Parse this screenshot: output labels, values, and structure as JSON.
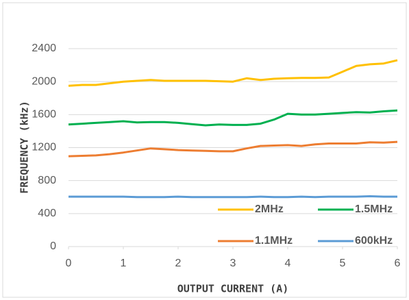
{
  "chart_data": {
    "type": "line",
    "x_label": "OUTPUT CURRENT (A)",
    "y_label": "FREQUENCY (kHz)",
    "x": [
      0,
      0.25,
      0.5,
      0.75,
      1,
      1.25,
      1.5,
      1.75,
      2,
      2.25,
      2.5,
      2.75,
      3,
      3.25,
      3.5,
      3.75,
      4,
      4.25,
      4.5,
      4.75,
      5,
      5.25,
      5.5,
      5.75,
      6
    ],
    "series": [
      {
        "name": "2MHz",
        "color": "#ffc000",
        "values": [
          1950,
          1960,
          1960,
          1980,
          2000,
          2010,
          2020,
          2010,
          2010,
          2010,
          2010,
          2005,
          2000,
          2040,
          2020,
          2035,
          2040,
          2045,
          2045,
          2050,
          2120,
          2190,
          2210,
          2220,
          2260
        ]
      },
      {
        "name": "1.5MHz",
        "color": "#00b050",
        "values": [
          1480,
          1490,
          1500,
          1510,
          1520,
          1505,
          1510,
          1510,
          1500,
          1485,
          1470,
          1480,
          1475,
          1475,
          1490,
          1540,
          1610,
          1600,
          1600,
          1610,
          1620,
          1630,
          1625,
          1640,
          1650
        ]
      },
      {
        "name": "1.1MHz",
        "color": "#ed7d31",
        "values": [
          1095,
          1100,
          1105,
          1120,
          1140,
          1165,
          1190,
          1180,
          1170,
          1165,
          1160,
          1155,
          1155,
          1190,
          1220,
          1225,
          1230,
          1220,
          1240,
          1250,
          1250,
          1250,
          1265,
          1260,
          1270
        ]
      },
      {
        "name": "600kHz",
        "color": "#5b9bd5",
        "values": [
          605,
          605,
          605,
          605,
          605,
          600,
          600,
          600,
          605,
          600,
          600,
          600,
          600,
          600,
          605,
          600,
          600,
          605,
          600,
          605,
          605,
          605,
          610,
          605,
          605
        ]
      }
    ],
    "xlim": [
      0,
      6
    ],
    "xticks": [
      0,
      1,
      2,
      3,
      4,
      5,
      6
    ],
    "ylim": [
      0,
      2400
    ],
    "yticks": [
      0,
      400,
      800,
      1200,
      1600,
      2000,
      2400
    ],
    "grid": true,
    "legend": "bottom-right"
  }
}
